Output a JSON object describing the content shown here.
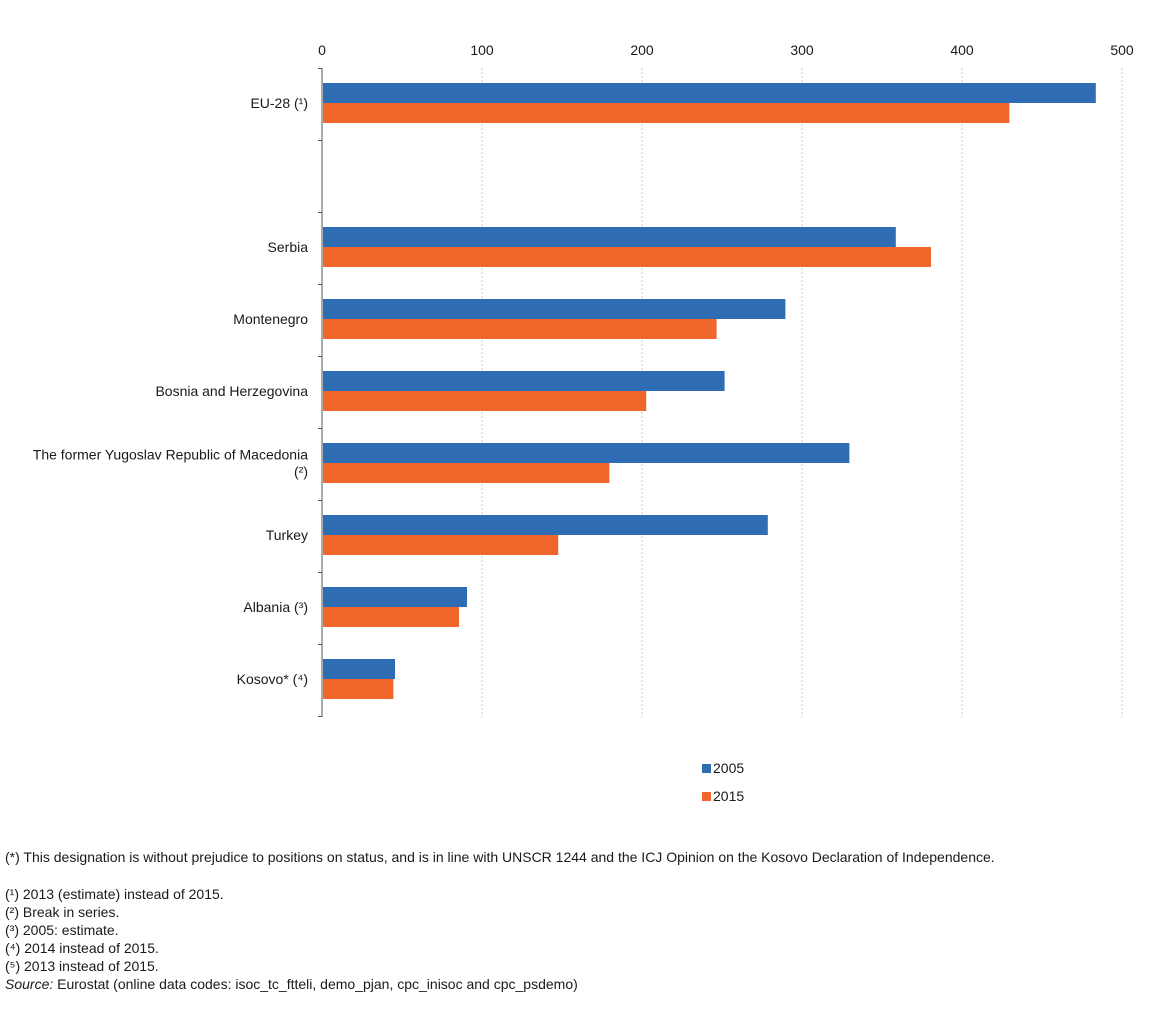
{
  "chart_data": {
    "type": "bar",
    "orientation": "horizontal",
    "categories": [
      "EU-28 (¹)",
      "",
      "Serbia",
      "Montenegro",
      "Bosnia and Herzegovina",
      "The former Yugoslav Republic of Macedonia (²)",
      "Turkey",
      "Albania (³)",
      "Kosovo* (⁴)"
    ],
    "category_lines": [
      [
        "EU-28 (¹)"
      ],
      [],
      [
        "Serbia"
      ],
      [
        "Montenegro"
      ],
      [
        "Bosnia and Herzegovina"
      ],
      [
        "The former Yugoslav Republic of Macedonia",
        "(²)"
      ],
      [
        "Turkey"
      ],
      [
        "Albania (³)"
      ],
      [
        "Kosovo* (⁴)"
      ]
    ],
    "series": [
      {
        "name": "2005",
        "color": "#2e6db4",
        "values": [
          483,
          null,
          358,
          289,
          251,
          329,
          278,
          90,
          45
        ]
      },
      {
        "name": "2015",
        "color": "#f0652a",
        "values": [
          429,
          null,
          380,
          246,
          202,
          179,
          147,
          85,
          44
        ]
      }
    ],
    "xlim": [
      0,
      500
    ],
    "xticks": [
      0,
      100,
      200,
      300,
      400,
      500
    ],
    "axis_position": "top",
    "grid": true,
    "legend": "bottom",
    "title": "",
    "xlabel": "",
    "ylabel": ""
  },
  "notes": {
    "designation": "(*) This designation is without prejudice to positions on status, and is in line with UNSCR 1244 and the ICJ Opinion on the Kosovo Declaration of Independence.",
    "footnotes": [
      "(¹) 2013 (estimate) instead of 2015.",
      "(²) Break in series.",
      "(³) 2005: estimate.",
      "(⁴) 2014 instead of 2015.",
      "(⁵) 2013 instead of 2015."
    ],
    "source_label": "Source:",
    "source_text": " Eurostat (online data codes: isoc_tc_ftteli, demo_pjan, cpc_inisoc and cpc_psdemo)"
  }
}
